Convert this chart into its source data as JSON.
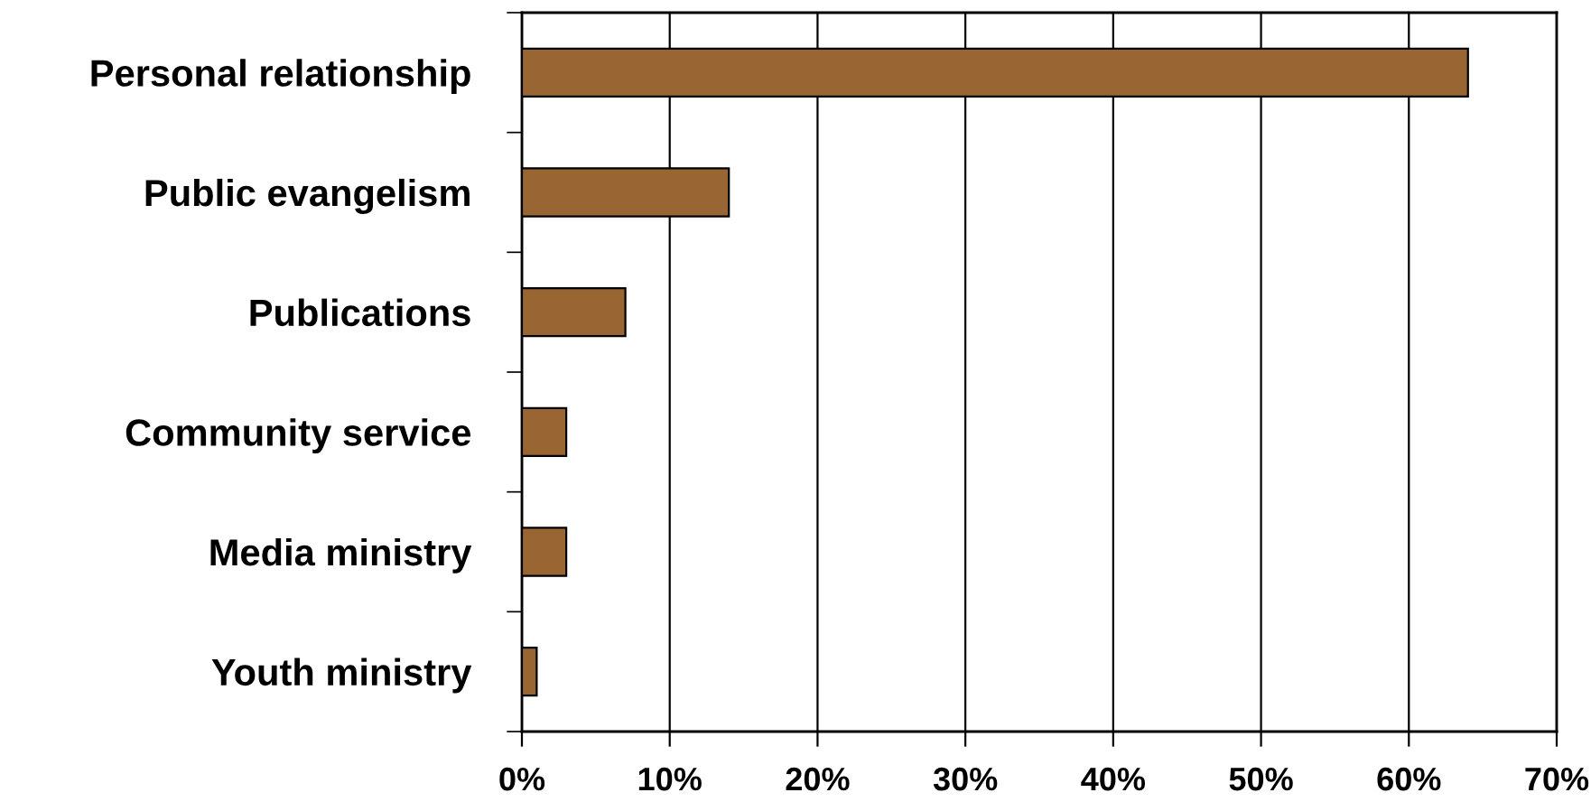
{
  "chart_data": {
    "type": "bar",
    "orientation": "horizontal",
    "categories": [
      "Personal relationship",
      "Public evangelism",
      "Publications",
      "Community service",
      "Media ministry",
      "Youth ministry"
    ],
    "values": [
      64,
      14,
      7,
      3,
      3,
      1
    ],
    "color": "#996633",
    "xlim": [
      0,
      70
    ],
    "xticks": [
      {
        "value": 0,
        "label": "0%"
      },
      {
        "value": 10,
        "label": "10%"
      },
      {
        "value": 20,
        "label": "20%"
      },
      {
        "value": 30,
        "label": "30%"
      },
      {
        "value": 40,
        "label": "40%"
      },
      {
        "value": 50,
        "label": "50%"
      },
      {
        "value": 60,
        "label": "60%"
      },
      {
        "value": 70,
        "label": "70%"
      }
    ],
    "grid": "x"
  }
}
